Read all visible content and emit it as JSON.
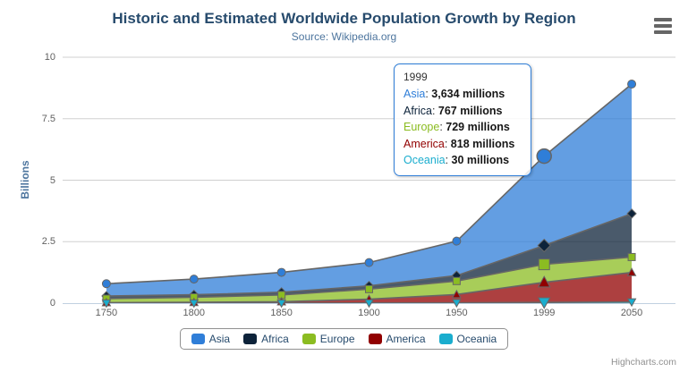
{
  "chart_data": {
    "type": "area",
    "stacking": "normal",
    "title": "Historic and Estimated Worldwide Population Growth by Region",
    "subtitle": "Source: Wikipedia.org",
    "categories": [
      "1750",
      "1800",
      "1850",
      "1900",
      "1950",
      "1999",
      "2050"
    ],
    "xlabel": "",
    "ylabel": "Billions",
    "ylim": [
      0,
      10
    ],
    "yticks": [
      0,
      2.5,
      5,
      7.5,
      10
    ],
    "ytick_labels": [
      "0",
      "2.5",
      "5",
      "7.5",
      "10"
    ],
    "value_unit": "millions",
    "grid": true,
    "legend_position": "bottom",
    "series": [
      {
        "name": "Asia",
        "color": "#2f7ed8",
        "marker": "circle",
        "values": [
          502,
          635,
          809,
          947,
          1402,
          3634,
          5268
        ]
      },
      {
        "name": "Africa",
        "color": "#0d233a",
        "marker": "diamond",
        "values": [
          106,
          107,
          111,
          133,
          221,
          767,
          1766
        ]
      },
      {
        "name": "Europe",
        "color": "#8bbc21",
        "marker": "square",
        "values": [
          163,
          203,
          276,
          408,
          547,
          729,
          628
        ]
      },
      {
        "name": "America",
        "color": "#910000",
        "marker": "triangle",
        "values": [
          18,
          31,
          54,
          156,
          339,
          818,
          1201
        ]
      },
      {
        "name": "Oceania",
        "color": "#1aadce",
        "marker": "triangle-down",
        "values": [
          2,
          2,
          2,
          6,
          13,
          30,
          46
        ]
      }
    ],
    "hover": {
      "category": "1999",
      "series": "Asia"
    }
  },
  "tooltip": {
    "header": "1999",
    "rows": [
      {
        "name": "Asia",
        "color": "#2f7ed8",
        "value": "3,634 millions"
      },
      {
        "name": "Africa",
        "color": "#0d233a",
        "value": "767 millions"
      },
      {
        "name": "Europe",
        "color": "#8bbc21",
        "value": "729 millions"
      },
      {
        "name": "America",
        "color": "#910000",
        "value": "818 millions"
      },
      {
        "name": "Oceania",
        "color": "#1aadce",
        "value": "30 millions"
      }
    ]
  },
  "legend": {
    "items": [
      {
        "label": "Asia",
        "color": "#2f7ed8"
      },
      {
        "label": "Africa",
        "color": "#0d233a"
      },
      {
        "label": "Europe",
        "color": "#8bbc21"
      },
      {
        "label": "America",
        "color": "#910000"
      },
      {
        "label": "Oceania",
        "color": "#1aadce"
      }
    ]
  },
  "credits": {
    "text": "Highcharts.com"
  },
  "icons": {
    "context_menu": "hamburger-menu-icon"
  },
  "colors": {
    "title": "#274b6d",
    "subtitle": "#4d759e",
    "axis_label": "#606060",
    "grid": "#d0d0d0",
    "axis_line": "#c0d0e0",
    "series_line": "#666666",
    "fill_opacity": 0.75
  }
}
